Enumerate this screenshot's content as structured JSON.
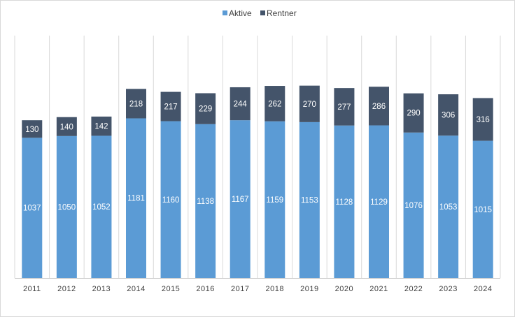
{
  "chart_data": {
    "type": "bar",
    "stacked": true,
    "title": "",
    "xlabel": "",
    "ylabel": "",
    "grid": "vertical",
    "legend_position": "top-center",
    "categories": [
      "2011",
      "2012",
      "2013",
      "2014",
      "2015",
      "2016",
      "2017",
      "2018",
      "2019",
      "2020",
      "2021",
      "2022",
      "2023",
      "2024"
    ],
    "series": [
      {
        "name": "Aktive",
        "color": "#5b9bd5",
        "values": [
          1037,
          1050,
          1052,
          1181,
          1160,
          1138,
          1167,
          1159,
          1153,
          1128,
          1129,
          1076,
          1053,
          1015
        ]
      },
      {
        "name": "Rentner",
        "color": "#44546a",
        "values": [
          130,
          140,
          142,
          218,
          217,
          229,
          244,
          262,
          270,
          277,
          286,
          290,
          306,
          316
        ]
      }
    ],
    "ylim": [
      0,
      1500
    ]
  }
}
